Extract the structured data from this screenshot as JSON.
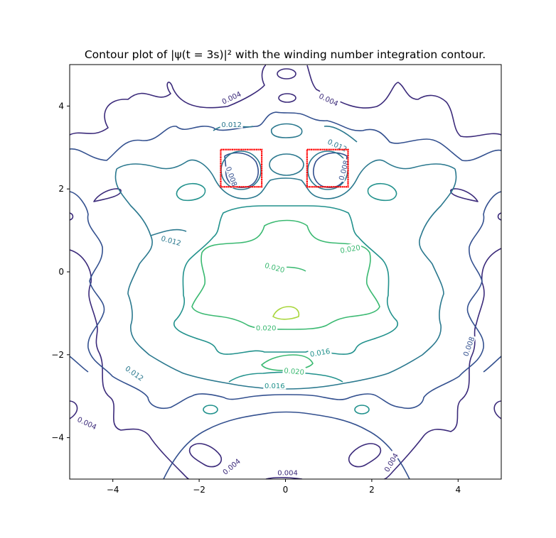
{
  "chart_data": {
    "type": "contour",
    "title": "Contour plot of |ψ(t = 3s)|² with the winding number integration contour.",
    "xlim": [
      -5,
      5
    ],
    "ylim": [
      -5,
      5
    ],
    "xticks": [
      -4,
      -2,
      0,
      2,
      4
    ],
    "yticks": [
      -4,
      -2,
      0,
      2,
      4
    ],
    "xtick_labels": [
      "−4",
      "−2",
      "0",
      "2",
      "4"
    ],
    "ytick_labels": [
      "−4",
      "−2",
      "0",
      "2",
      "4"
    ],
    "grid": false,
    "levels": [
      {
        "value": 0.004,
        "label": "0.004",
        "color": "#3b2a7a"
      },
      {
        "value": 0.008,
        "label": "0.008",
        "color": "#33508f"
      },
      {
        "value": 0.012,
        "label": "0.012",
        "color": "#2a788e"
      },
      {
        "value": 0.016,
        "label": "0.016",
        "color": "#21918c"
      },
      {
        "value": 0.02,
        "label": "0.020",
        "color": "#3ab971"
      },
      {
        "value": 0.024,
        "label": "",
        "color": "#a8d63a"
      }
    ],
    "contour_labels": [
      {
        "text": "0.004",
        "x": -1.25,
        "y": 4.2,
        "angle": -25,
        "level": 0
      },
      {
        "text": "0.004",
        "x": 1.0,
        "y": 4.15,
        "angle": 25,
        "level": 0
      },
      {
        "text": "0.012",
        "x": -1.25,
        "y": 3.55,
        "angle": 0,
        "level": 2
      },
      {
        "text": "0.012",
        "x": 1.2,
        "y": 3.05,
        "angle": 25,
        "level": 2
      },
      {
        "text": "0.008",
        "x": -1.25,
        "y": 2.3,
        "angle": 70,
        "level": 1
      },
      {
        "text": "0.008",
        "x": 1.35,
        "y": 2.45,
        "angle": -75,
        "level": 1
      },
      {
        "text": "0.012",
        "x": -2.65,
        "y": 0.75,
        "angle": 15,
        "level": 2
      },
      {
        "text": "0.020",
        "x": 1.5,
        "y": 0.55,
        "angle": -10,
        "level": 4
      },
      {
        "text": "0.020",
        "x": -0.25,
        "y": 0.1,
        "angle": 15,
        "level": 4
      },
      {
        "text": "0.020",
        "x": -0.45,
        "y": -1.35,
        "angle": 0,
        "level": 4
      },
      {
        "text": "0.016",
        "x": 0.8,
        "y": -1.95,
        "angle": -10,
        "level": 3
      },
      {
        "text": "0.020",
        "x": 0.2,
        "y": -2.4,
        "angle": 5,
        "level": 4
      },
      {
        "text": "0.016",
        "x": -0.25,
        "y": -2.75,
        "angle": 0,
        "level": 3
      },
      {
        "text": "0.012",
        "x": -3.5,
        "y": -2.45,
        "angle": 35,
        "level": 2
      },
      {
        "text": "0.004",
        "x": -4.6,
        "y": -3.65,
        "angle": 25,
        "level": 0
      },
      {
        "text": "0.008",
        "x": 4.25,
        "y": -1.8,
        "angle": -70,
        "level": 1
      },
      {
        "text": "0.004",
        "x": -1.25,
        "y": -4.7,
        "angle": -40,
        "level": 0
      },
      {
        "text": "0.004",
        "x": 0.05,
        "y": -4.85,
        "angle": 0,
        "level": 0
      },
      {
        "text": "0.004",
        "x": 2.45,
        "y": -4.6,
        "angle": -60,
        "level": 0
      }
    ],
    "integration_contours": [
      {
        "x0": -1.5,
        "x1": -0.55,
        "y0": 2.05,
        "y1": 2.95,
        "color": "#ff0000"
      },
      {
        "x0": 0.5,
        "x1": 1.45,
        "y0": 2.05,
        "y1": 2.95,
        "color": "#ff0000"
      }
    ]
  }
}
